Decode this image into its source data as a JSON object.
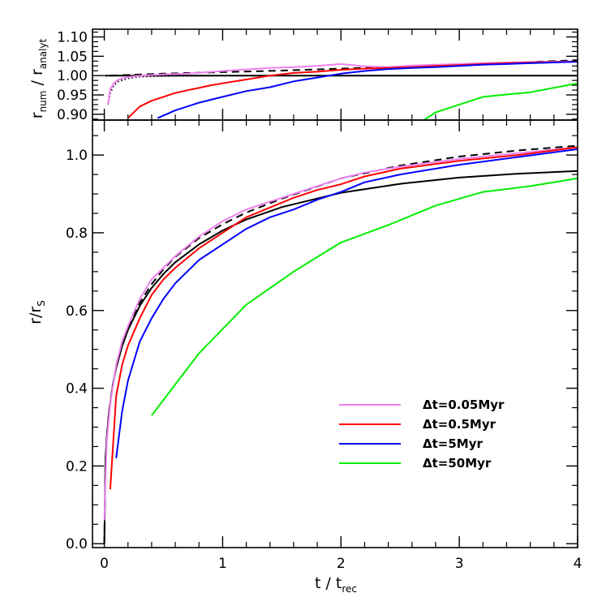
{
  "chart_data": [
    {
      "panel": "top",
      "type": "line",
      "ylabel": "r_num / r_analyt",
      "ylabel_parts": {
        "r1": "r",
        "sub1": "num",
        "slash": "/",
        "r2": "r",
        "sub2": "analyt"
      },
      "xlim": [
        -0.1,
        4.0
      ],
      "ylim": [
        0.885,
        1.12
      ],
      "yticks": [
        "0.90",
        "0.95",
        "1.00",
        "1.05",
        "1.10"
      ],
      "ytick_values": [
        0.9,
        0.95,
        1.0,
        1.05,
        1.1
      ],
      "reference_lines": [
        {
          "name": "unity",
          "style": "solid",
          "color": "#000000",
          "x": [
            0.0,
            4.0
          ],
          "y": [
            1.0,
            1.0
          ]
        },
        {
          "name": "dashed",
          "style": "dashed",
          "color": "#000000",
          "x": [
            0.05,
            0.5,
            1.0,
            1.5,
            2.0,
            2.5,
            3.0,
            3.5,
            4.0
          ],
          "y": [
            1.0,
            1.005,
            1.009,
            1.013,
            1.018,
            1.023,
            1.029,
            1.034,
            1.04
          ]
        },
        {
          "name": "dotted",
          "style": "dotted",
          "color": "#000000",
          "x": [
            0.03,
            0.05,
            0.08,
            0.12,
            0.2,
            0.3,
            0.5,
            0.7,
            0.9
          ],
          "y": [
            0.925,
            0.955,
            0.975,
            0.985,
            0.993,
            0.997,
            0.999,
            1.0,
            1.0
          ]
        }
      ],
      "series": [
        {
          "color": "#ee82ee",
          "x": [
            0.03,
            0.05,
            0.08,
            0.12,
            0.2,
            0.3,
            0.5,
            0.7,
            1.0,
            1.2,
            1.4,
            1.6,
            1.8,
            2.0,
            2.2,
            2.4,
            2.6,
            2.8,
            3.0,
            3.2,
            3.4,
            3.6,
            3.8,
            4.0
          ],
          "y": [
            0.925,
            0.965,
            0.98,
            0.99,
            0.996,
            1.0,
            1.003,
            1.005,
            1.012,
            1.016,
            1.02,
            1.022,
            1.025,
            1.03,
            1.024,
            1.022,
            1.026,
            1.028,
            1.03,
            1.032,
            1.034,
            1.035,
            1.036,
            1.037
          ]
        },
        {
          "color": "#ff0000",
          "x": [
            0.2,
            0.3,
            0.4,
            0.5,
            0.6,
            0.7,
            0.8,
            0.9,
            1.0,
            1.2,
            1.4,
            1.6,
            1.8,
            2.0,
            2.2,
            2.4,
            2.6,
            2.8,
            3.0,
            3.2,
            3.4,
            3.6,
            3.8,
            4.0
          ],
          "y": [
            0.89,
            0.92,
            0.935,
            0.945,
            0.955,
            0.962,
            0.968,
            0.975,
            0.98,
            0.99,
            1.0,
            1.007,
            1.01,
            1.015,
            1.018,
            1.02,
            1.022,
            1.025,
            1.027,
            1.03,
            1.032,
            1.034,
            1.035,
            1.036
          ]
        },
        {
          "color": "#0000ff",
          "x": [
            0.45,
            0.6,
            0.8,
            1.0,
            1.2,
            1.4,
            1.6,
            1.8,
            2.0,
            2.2,
            2.4,
            2.6,
            2.8,
            3.0,
            3.2,
            3.4,
            3.6,
            3.8,
            4.0
          ],
          "y": [
            0.89,
            0.91,
            0.93,
            0.945,
            0.96,
            0.97,
            0.985,
            0.995,
            1.005,
            1.012,
            1.017,
            1.02,
            1.022,
            1.025,
            1.028,
            1.03,
            1.032,
            1.034,
            1.036
          ]
        },
        {
          "color": "#00ee00",
          "x": [
            2.7,
            2.8,
            3.2,
            3.6,
            4.0
          ],
          "y": [
            0.885,
            0.905,
            0.945,
            0.957,
            0.98
          ]
        }
      ]
    },
    {
      "panel": "bottom",
      "type": "line",
      "xlabel": "t / t_rec",
      "xlabel_parts": {
        "t1": "t",
        "slash": "/",
        "t2": "t",
        "sub": "rec"
      },
      "ylabel": "r/r_S",
      "ylabel_parts": {
        "main": "r/r",
        "sub": "S"
      },
      "xlim": [
        -0.1,
        4.0
      ],
      "ylim": [
        -0.01,
        1.09
      ],
      "xticks": [
        "0",
        "1",
        "2",
        "3",
        "4"
      ],
      "xtick_values": [
        0,
        1,
        2,
        3,
        4
      ],
      "yticks": [
        "0.0",
        "0.2",
        "0.4",
        "0.6",
        "0.8",
        "1.0"
      ],
      "ytick_values": [
        0.0,
        0.2,
        0.4,
        0.6,
        0.8,
        1.0
      ],
      "legend_position": "bottom-right",
      "reference_lines": [
        {
          "name": "analytic-solid",
          "style": "solid",
          "color": "#000000",
          "x": [
            0.0,
            0.01,
            0.02,
            0.04,
            0.07,
            0.1,
            0.15,
            0.2,
            0.3,
            0.4,
            0.5,
            0.6,
            0.8,
            1.0,
            1.2,
            1.5,
            2.0,
            2.5,
            3.0,
            3.5,
            4.0
          ],
          "y": [
            0.0,
            0.215,
            0.271,
            0.339,
            0.405,
            0.452,
            0.508,
            0.55,
            0.612,
            0.658,
            0.694,
            0.724,
            0.77,
            0.806,
            0.834,
            0.866,
            0.903,
            0.926,
            0.942,
            0.952,
            0.959
          ]
        },
        {
          "name": "analytic-dashed",
          "style": "dashed",
          "color": "#000000",
          "x": [
            0.0,
            0.01,
            0.02,
            0.04,
            0.07,
            0.1,
            0.15,
            0.2,
            0.3,
            0.4,
            0.5,
            0.6,
            0.8,
            1.0,
            1.2,
            1.5,
            2.0,
            2.5,
            3.0,
            3.5,
            4.0
          ],
          "y": [
            0.0,
            0.215,
            0.271,
            0.34,
            0.407,
            0.455,
            0.512,
            0.556,
            0.62,
            0.668,
            0.706,
            0.738,
            0.786,
            0.822,
            0.852,
            0.888,
            0.94,
            0.973,
            0.996,
            1.012,
            1.024
          ]
        }
      ],
      "series": [
        {
          "name": "Δt=0.05Myr",
          "color": "#ee82ee",
          "x": [
            0.0,
            0.02,
            0.05,
            0.1,
            0.15,
            0.2,
            0.3,
            0.4,
            0.5,
            0.6,
            0.8,
            1.0,
            1.2,
            1.4,
            1.6,
            1.8,
            2.0,
            2.2,
            2.5,
            3.0,
            3.5,
            4.0
          ],
          "y": [
            0.06,
            0.26,
            0.36,
            0.46,
            0.52,
            0.56,
            0.63,
            0.68,
            0.71,
            0.74,
            0.79,
            0.83,
            0.86,
            0.88,
            0.9,
            0.92,
            0.94,
            0.955,
            0.97,
            0.99,
            1.005,
            1.02
          ]
        },
        {
          "name": "Δt=0.5Myr",
          "color": "#ff0000",
          "x": [
            0.05,
            0.1,
            0.15,
            0.2,
            0.3,
            0.4,
            0.5,
            0.6,
            0.8,
            1.0,
            1.2,
            1.4,
            1.6,
            1.8,
            2.0,
            2.2,
            2.5,
            3.0,
            3.5,
            4.0
          ],
          "y": [
            0.14,
            0.38,
            0.46,
            0.51,
            0.58,
            0.64,
            0.68,
            0.71,
            0.76,
            0.8,
            0.84,
            0.865,
            0.89,
            0.91,
            0.925,
            0.945,
            0.965,
            0.985,
            1.0,
            1.02
          ]
        },
        {
          "name": "Δt=5Myr",
          "color": "#0000ff",
          "x": [
            0.1,
            0.15,
            0.2,
            0.3,
            0.4,
            0.5,
            0.6,
            0.8,
            1.0,
            1.2,
            1.4,
            1.6,
            1.8,
            2.0,
            2.2,
            2.5,
            3.0,
            3.5,
            4.0
          ],
          "y": [
            0.22,
            0.34,
            0.42,
            0.52,
            0.58,
            0.63,
            0.67,
            0.73,
            0.77,
            0.81,
            0.84,
            0.86,
            0.885,
            0.905,
            0.93,
            0.95,
            0.975,
            0.995,
            1.015
          ]
        },
        {
          "name": "Δt=50Myr",
          "color": "#00ee00",
          "x": [
            0.4,
            0.8,
            1.2,
            1.6,
            2.0,
            2.4,
            2.8,
            3.2,
            3.6,
            4.0
          ],
          "y": [
            0.33,
            0.49,
            0.615,
            0.7,
            0.775,
            0.82,
            0.87,
            0.905,
            0.92,
            0.94
          ]
        }
      ]
    }
  ]
}
